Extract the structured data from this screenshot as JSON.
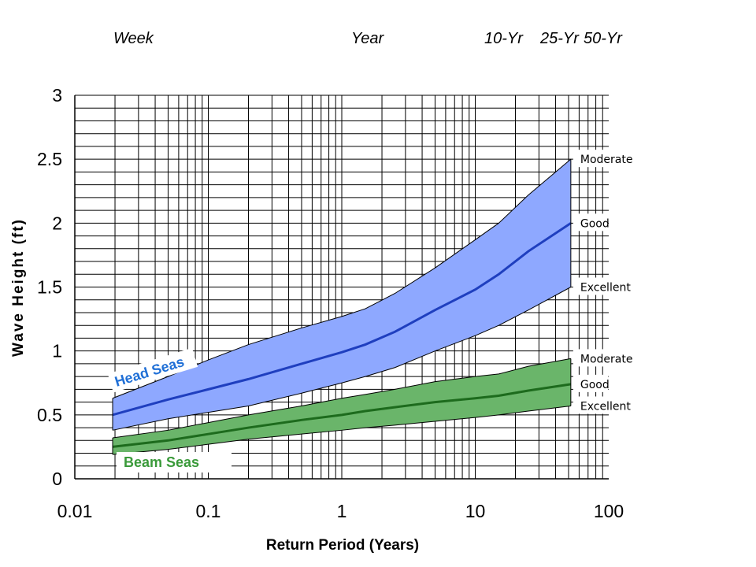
{
  "top_labels": {
    "week": "Week",
    "year": "Year",
    "ten_yr": "10-Yr",
    "twentyfive_yr": "25-Yr",
    "fifty_yr": "50-Yr"
  },
  "chart_data": {
    "type": "area",
    "xlabel": "Return Period (Years)",
    "ylabel": "Wave Height (ft)",
    "x_scale": "log",
    "xlim": [
      0.01,
      100
    ],
    "ylim": [
      0,
      3
    ],
    "x_ticks": [
      {
        "value": 0.01,
        "label": "0.01"
      },
      {
        "value": 0.1,
        "label": "0.1"
      },
      {
        "value": 1,
        "label": "1"
      },
      {
        "value": 10,
        "label": "10"
      },
      {
        "value": 100,
        "label": "100"
      }
    ],
    "y_ticks": [
      {
        "value": 0,
        "label": "0"
      },
      {
        "value": 0.5,
        "label": "0.5"
      },
      {
        "value": 1,
        "label": "1"
      },
      {
        "value": 1.5,
        "label": "1.5"
      },
      {
        "value": 2,
        "label": "2"
      },
      {
        "value": 2.5,
        "label": "2.5"
      },
      {
        "value": 3,
        "label": "3"
      }
    ],
    "grid": true,
    "x": [
      0.0192,
      0.05,
      0.1,
      0.2,
      0.5,
      1,
      1.5,
      2.5,
      5,
      10,
      15,
      25,
      52
    ],
    "series": [
      {
        "name": "Head Seas",
        "color": "#1f3fbf",
        "fill": "#8ea8ff",
        "labels": {
          "upper": "Moderate",
          "center": "Good",
          "lower": "Excellent"
        },
        "upper": [
          0.63,
          0.8,
          0.93,
          1.05,
          1.18,
          1.27,
          1.33,
          1.45,
          1.65,
          1.87,
          2.0,
          2.22,
          2.5
        ],
        "center": [
          0.5,
          0.62,
          0.7,
          0.78,
          0.9,
          0.99,
          1.05,
          1.15,
          1.32,
          1.48,
          1.6,
          1.78,
          2.0
        ],
        "lower": [
          0.38,
          0.47,
          0.52,
          0.57,
          0.67,
          0.75,
          0.8,
          0.87,
          1.0,
          1.12,
          1.2,
          1.32,
          1.5
        ]
      },
      {
        "name": "Beam Seas",
        "color": "#1d6b1d",
        "fill": "#6ab56a",
        "labels": {
          "upper": "Moderate",
          "center": "Good",
          "lower": "Excellent"
        },
        "upper": [
          0.32,
          0.38,
          0.44,
          0.5,
          0.57,
          0.63,
          0.66,
          0.7,
          0.76,
          0.8,
          0.82,
          0.88,
          0.94
        ],
        "center": [
          0.25,
          0.3,
          0.35,
          0.4,
          0.46,
          0.5,
          0.53,
          0.56,
          0.6,
          0.63,
          0.65,
          0.69,
          0.74
        ],
        "lower": [
          0.19,
          0.23,
          0.27,
          0.31,
          0.35,
          0.38,
          0.4,
          0.42,
          0.45,
          0.48,
          0.5,
          0.53,
          0.57
        ]
      }
    ]
  }
}
